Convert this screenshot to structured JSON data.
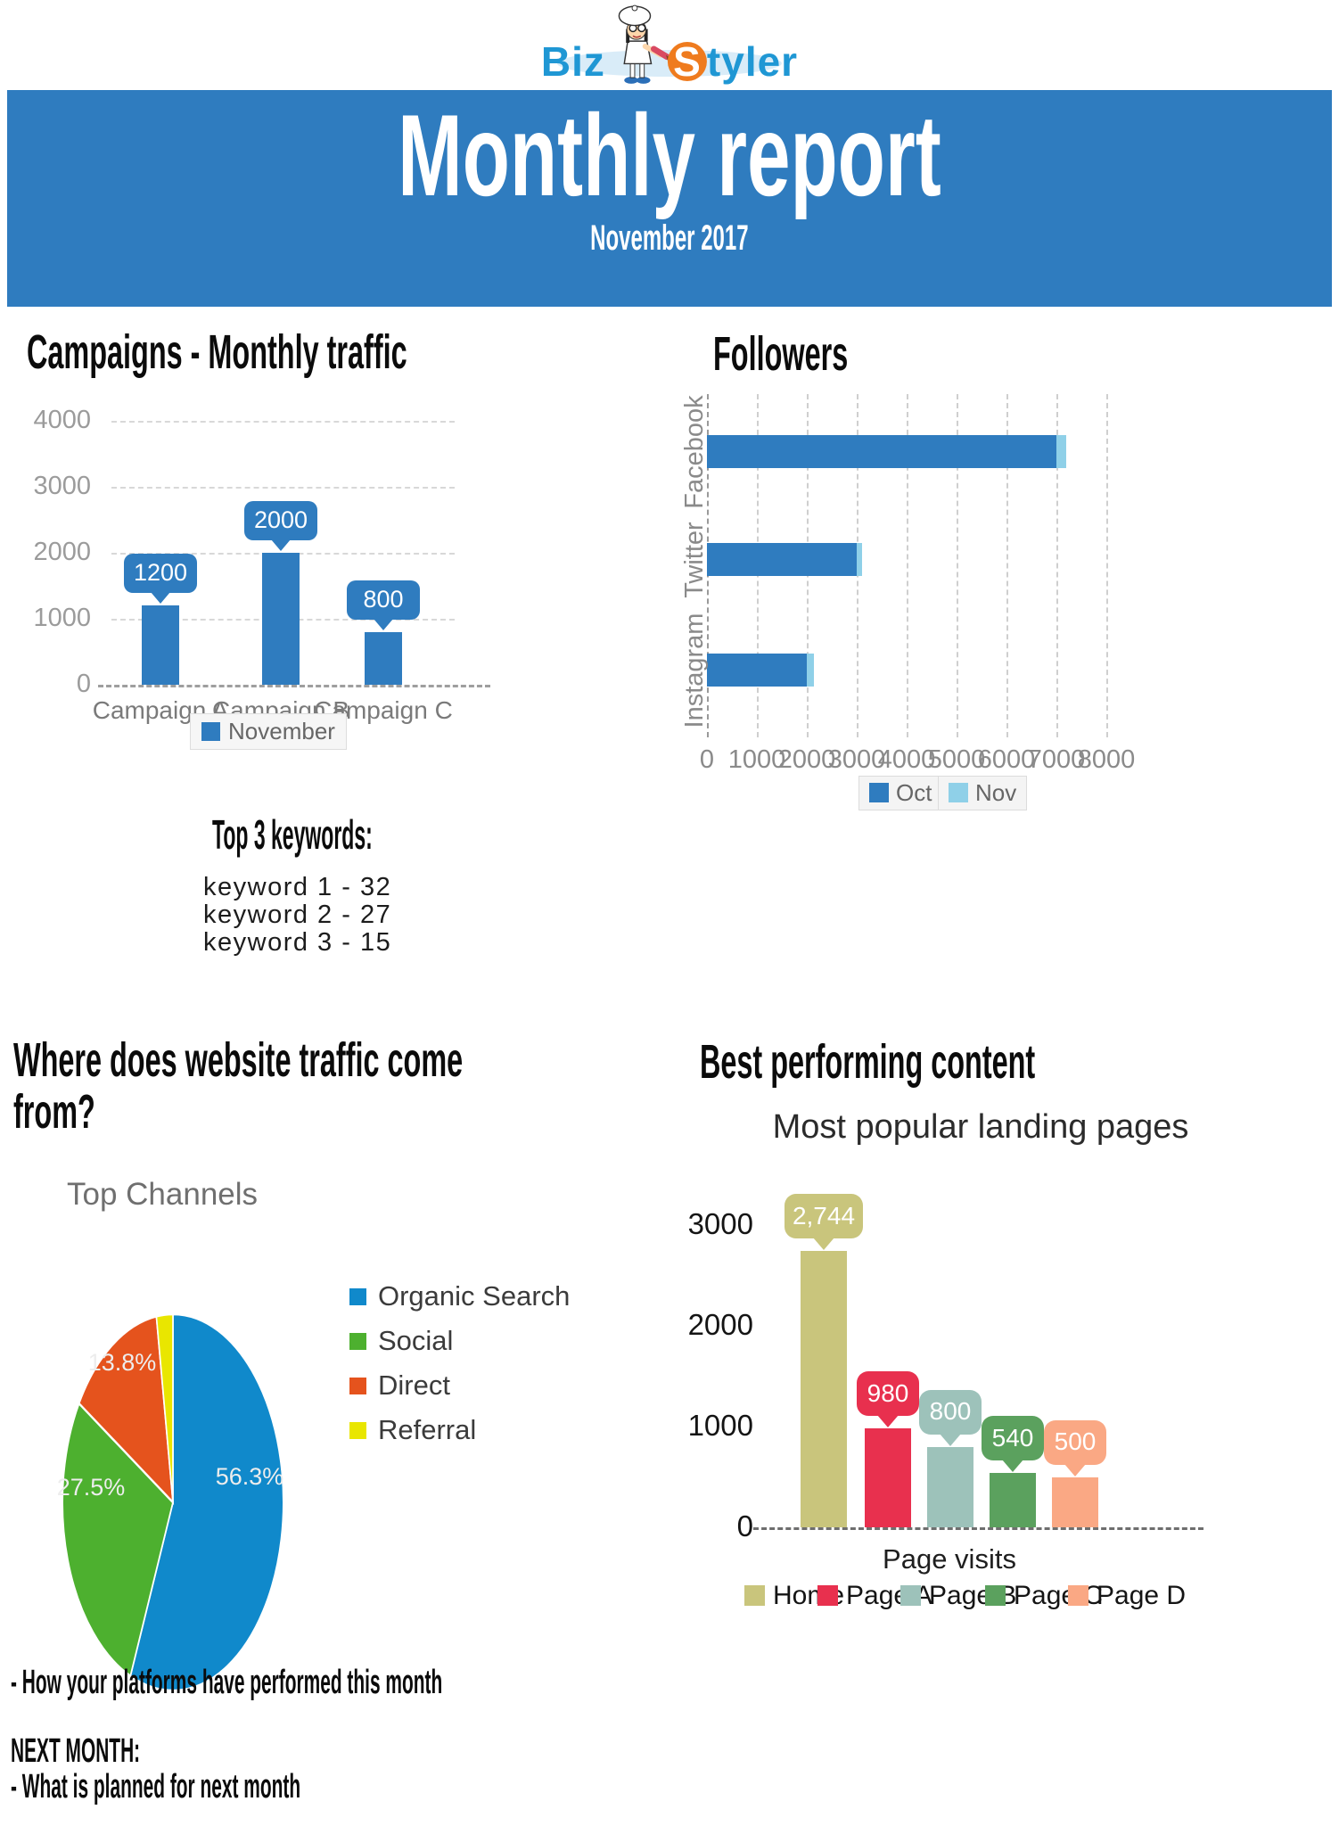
{
  "logo": {
    "biz": "Biz",
    "styler_first": "S",
    "styler_rest": "tyler"
  },
  "banner": {
    "title": "Monthly report",
    "subtitle": "November 2017"
  },
  "sections": {
    "keywords_title": "Top 3 keywords:",
    "keywords": [
      "keyword 1 - 32",
      "keyword 2 - 27",
      "keyword 3 - 15"
    ],
    "traffic_heading": "Where does website traffic come from?",
    "content_heading": "Best performing content"
  },
  "footer": {
    "line1": "- How your platforms have performed this month",
    "next_month": "NEXT MONTH:",
    "line2": "- What is planned for next month"
  },
  "colors": {
    "banner_blue": "#2f7cbf",
    "logo_blue": "#1f97d4",
    "logo_paint_orange": "#ef7b1e"
  },
  "chart_data": [
    {
      "id": "campaigns",
      "type": "bar",
      "title": "Campaigns - Monthly traffic",
      "categories": [
        "Campaign A",
        "Campaign B",
        "Campaign C"
      ],
      "series": [
        {
          "name": "November",
          "values": [
            1200,
            2000,
            800
          ]
        }
      ],
      "ylim": [
        0,
        4000
      ],
      "yticks": [
        0,
        1000,
        2000,
        3000,
        4000
      ],
      "bar_color": "#2f7cbf",
      "grid": "horizontal-dashed",
      "legend_position": "bottom"
    },
    {
      "id": "followers",
      "type": "bar-horizontal",
      "title": "Followers",
      "categories": [
        "Facebook",
        "Twitter",
        "Instagram"
      ],
      "series": [
        {
          "name": "Oct",
          "color": "#2f7cbf",
          "values": [
            7000,
            3000,
            2000
          ]
        },
        {
          "name": "Nov",
          "color": "#8fd0e8",
          "values": [
            7200,
            3100,
            2150
          ]
        }
      ],
      "xlim": [
        0,
        8000
      ],
      "xticks": [
        0,
        1000,
        2000,
        3000,
        4000,
        5000,
        6000,
        7000,
        8000
      ],
      "grid": "vertical-dashed",
      "legend_position": "bottom"
    },
    {
      "id": "channels",
      "type": "pie",
      "title": "Top Channels",
      "labels": [
        "Organic Search",
        "Social",
        "Direct",
        "Referral"
      ],
      "values": [
        56.3,
        27.5,
        13.8,
        2.4
      ],
      "slice_labels": [
        "56.3%",
        "27.5%",
        "13.8%",
        ""
      ],
      "colors": [
        "#1089cb",
        "#4db02f",
        "#e5531d",
        "#e9e600"
      ],
      "legend_position": "right"
    },
    {
      "id": "landing",
      "type": "bar",
      "title": "Most popular landing pages",
      "categories": [
        "Home",
        "Page A",
        "Page B",
        "Page C",
        "Page D"
      ],
      "values": [
        2744,
        980,
        800,
        540,
        500
      ],
      "value_labels": [
        "2,744",
        "980",
        "800",
        "540",
        "500"
      ],
      "colors": [
        "#c9c57c",
        "#e8304e",
        "#9dc2ba",
        "#5ba15e",
        "#faa884"
      ],
      "ylim": [
        0,
        3000
      ],
      "yticks": [
        0,
        1000,
        2000,
        3000
      ],
      "xlabel": "Page visits",
      "legend_position": "bottom"
    }
  ]
}
